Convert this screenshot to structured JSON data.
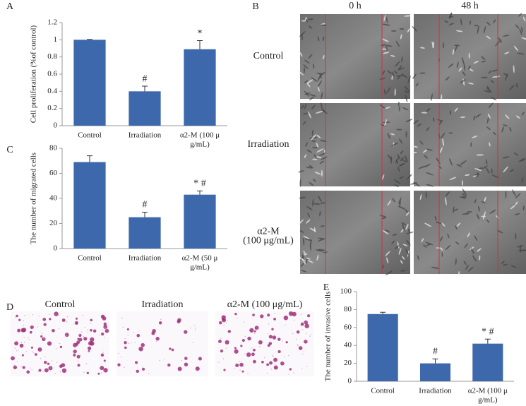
{
  "figure": {
    "panel_labels": [
      "A",
      "B",
      "C",
      "D",
      "E"
    ],
    "wound_columns": [
      "0 h",
      "48 h"
    ],
    "wound_rows": [
      "Control",
      "Irradiation",
      "α2-M\n(100 μg/mL)"
    ],
    "transwell_labels": [
      "Control",
      "Irradiation",
      "α2-M (100 μg/mL)"
    ]
  },
  "chart_data": [
    {
      "type": "bar",
      "ylabel": "Cell proliferation (%of control)",
      "color": "#3d68ab",
      "categories": [
        "Control",
        "Irradiation",
        "α2-M (100 μ\ng/mL)"
      ],
      "values": [
        1.0,
        0.4,
        0.89
      ],
      "errors": [
        0.005,
        0.06,
        0.1
      ],
      "annotations": [
        null,
        "#",
        "*"
      ],
      "ylim": [
        0,
        1.2
      ],
      "yticks": [
        0,
        0.2,
        0.4,
        0.6,
        0.8,
        1,
        1.2
      ]
    },
    {
      "type": "bar",
      "ylabel": "The number of migrated cells",
      "color": "#3d68ab",
      "categories": [
        "Control",
        "Irradiation",
        "α2-M (50 μ\ng/mL)"
      ],
      "values": [
        69,
        25,
        43
      ],
      "errors": [
        5,
        4,
        3
      ],
      "annotations": [
        null,
        "#",
        "* #"
      ],
      "ylim": [
        0,
        80
      ],
      "yticks": [
        0,
        20,
        40,
        60,
        80
      ]
    },
    {
      "type": "bar",
      "ylabel": "The number of invasive cells",
      "color": "#3d68ab",
      "categories": [
        "Control",
        "Irradiation",
        "α2-M (100 μ\ng/mL)"
      ],
      "values": [
        75,
        20,
        42
      ],
      "errors": [
        2,
        5,
        5
      ],
      "annotations": [
        null,
        "#",
        "* #"
      ],
      "ylim": [
        0,
        100
      ],
      "yticks": [
        0,
        20,
        40,
        60,
        80,
        100
      ]
    }
  ]
}
